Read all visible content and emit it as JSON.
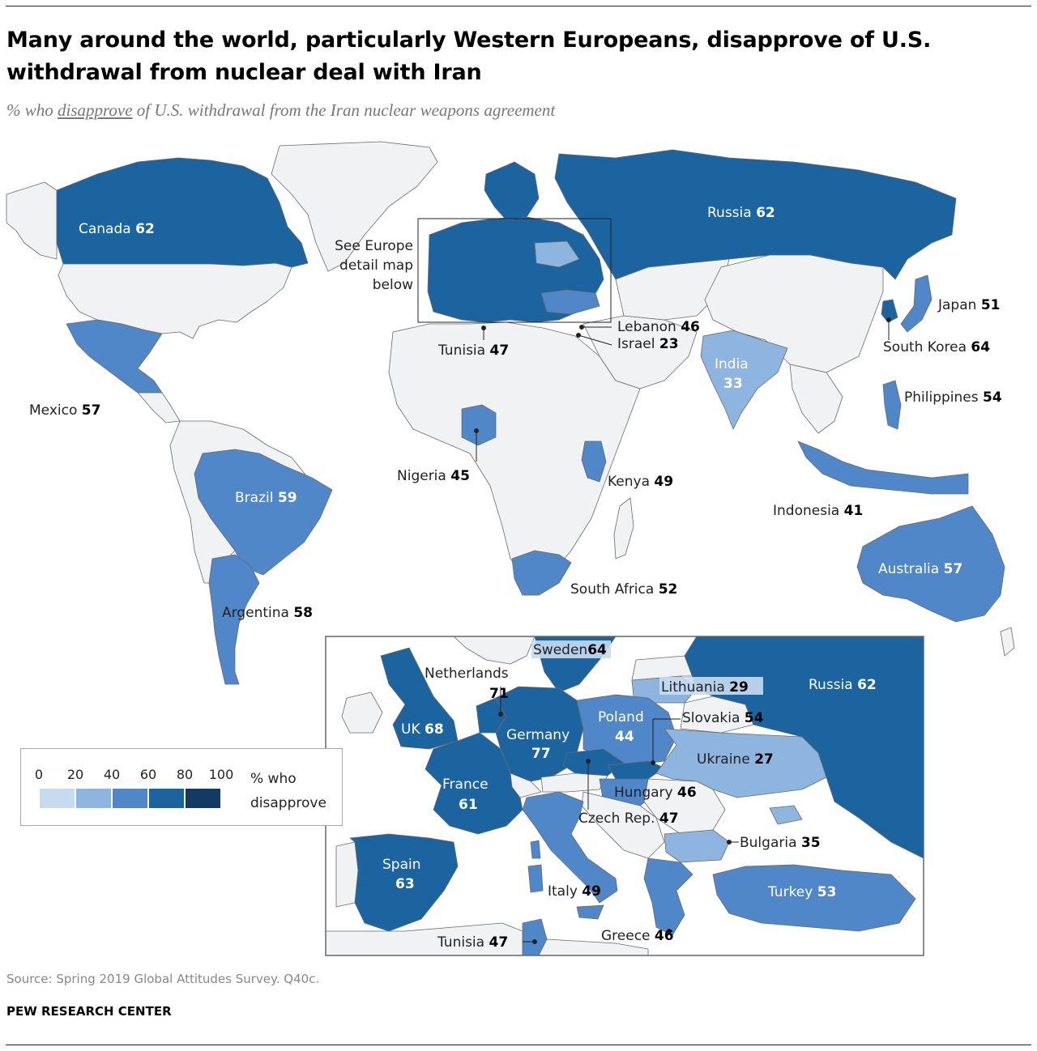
{
  "title": "Many around the world, particularly Western Europeans, disapprove of U.S. withdrawal from nuclear deal with Iran",
  "subtitle": {
    "prefix": "% who ",
    "underlined": "disapprove",
    "suffix": " of U.S. withdrawal from the Iran nuclear weapons agreement"
  },
  "europe_note": [
    "See Europe",
    "detail map",
    "below"
  ],
  "colors": {
    "c0_20": "#c6dbef",
    "c20_40": "#8db5e0",
    "c40_60": "#4f87c8",
    "c60_80": "#1b64a0",
    "c80_100": "#123a63",
    "no_data": "#f1f2f4",
    "border": "#6b6b6b"
  },
  "world_countries": [
    {
      "name": "Canada",
      "value": "62"
    },
    {
      "name": "Mexico",
      "value": "57"
    },
    {
      "name": "Brazil",
      "value": "59"
    },
    {
      "name": "Argentina",
      "value": "58"
    },
    {
      "name": "Tunisia",
      "value": "47"
    },
    {
      "name": "Lebanon",
      "value": "46"
    },
    {
      "name": "Israel",
      "value": "23"
    },
    {
      "name": "Nigeria",
      "value": "45"
    },
    {
      "name": "Kenya",
      "value": "49"
    },
    {
      "name": "South Africa",
      "value": "52"
    },
    {
      "name": "Russia",
      "value": "62"
    },
    {
      "name": "India",
      "value": "33"
    },
    {
      "name": "Japan",
      "value": "51"
    },
    {
      "name": "South Korea",
      "value": "64"
    },
    {
      "name": "Philippines",
      "value": "54"
    },
    {
      "name": "Indonesia",
      "value": "41"
    },
    {
      "name": "Australia",
      "value": "57"
    }
  ],
  "europe_countries": [
    {
      "name": "Sweden",
      "value": "64"
    },
    {
      "name": "Netherlands",
      "value": "71"
    },
    {
      "name": "Lithuania",
      "value": "29"
    },
    {
      "name": "Russia",
      "value": "62"
    },
    {
      "name": "UK",
      "value": "68"
    },
    {
      "name": "Germany",
      "value": "77"
    },
    {
      "name": "Poland",
      "value": "44"
    },
    {
      "name": "Slovakia",
      "value": "54"
    },
    {
      "name": "Ukraine",
      "value": "27"
    },
    {
      "name": "France",
      "value": "61"
    },
    {
      "name": "Hungary",
      "value": "46"
    },
    {
      "name": "Czech Rep.",
      "value": "47"
    },
    {
      "name": "Bulgaria",
      "value": "35"
    },
    {
      "name": "Spain",
      "value": "63"
    },
    {
      "name": "Italy",
      "value": "49"
    },
    {
      "name": "Turkey",
      "value": "53"
    },
    {
      "name": "Greece",
      "value": "46"
    },
    {
      "name": "Tunisia",
      "value": "47"
    }
  ],
  "legend": {
    "ticks": [
      "0",
      "20",
      "40",
      "60",
      "80",
      "100"
    ],
    "label_line1": "% who",
    "label_line2": "disapprove"
  },
  "source": "Source: Spring 2019 Global Attitudes Survey. Q40c.",
  "brand": "PEW RESEARCH CENTER"
}
